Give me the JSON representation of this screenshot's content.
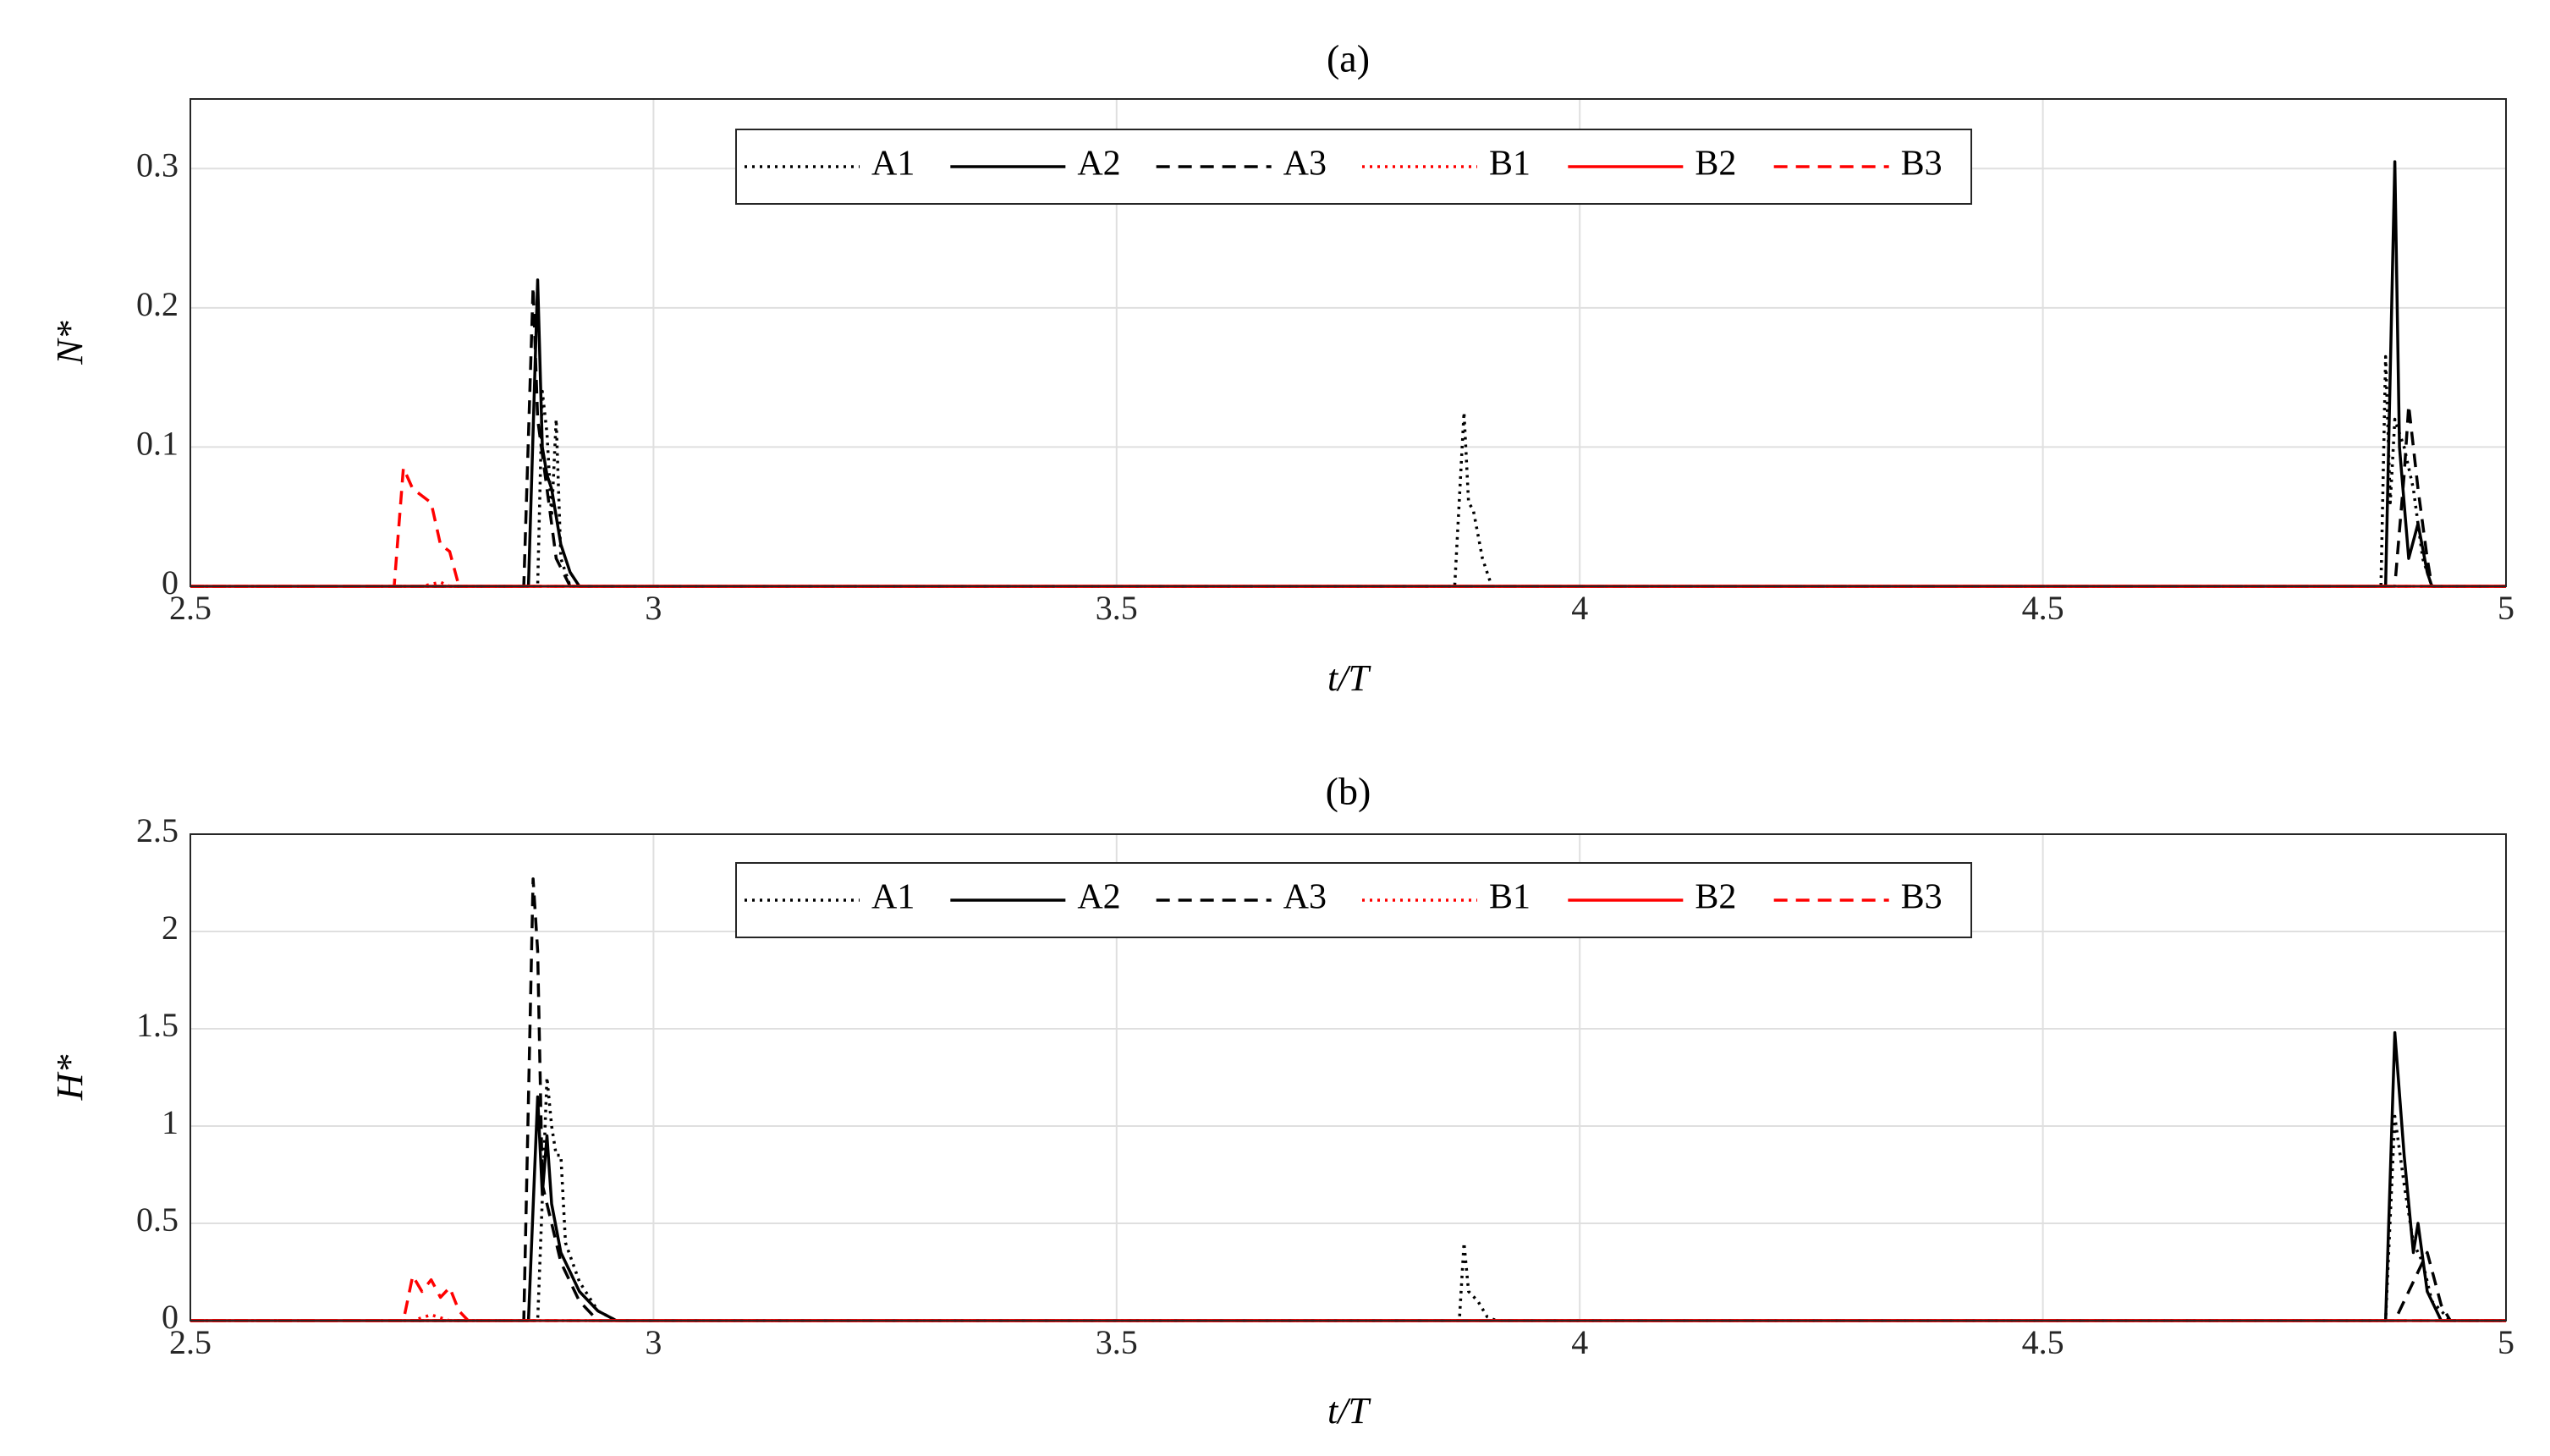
{
  "chart_data": [
    {
      "type": "line",
      "title": "(a)",
      "xlabel": "t/T",
      "ylabel": "N*",
      "xlim": [
        2.5,
        5
      ],
      "xticks": [
        2.5,
        3,
        3.5,
        4,
        4.5,
        5
      ],
      "ylim": [
        0,
        0.35
      ],
      "yticks": [
        0,
        0.1,
        0.2,
        0.3
      ],
      "grid": true,
      "legend": "top",
      "series": [
        {
          "name": "A1",
          "color": "#000000",
          "line_style": "dotted",
          "x": [
            2.5,
            2.875,
            2.88,
            2.885,
            2.89,
            2.895,
            2.9,
            2.91,
            3.865,
            3.875,
            3.88,
            3.885,
            3.895,
            3.905,
            4.865,
            4.87,
            4.875,
            4.88,
            4.89,
            4.9,
            4.91,
            4.92,
            5
          ],
          "values": [
            0,
            0,
            0.14,
            0.11,
            0.05,
            0.12,
            0.02,
            0,
            0,
            0.125,
            0.06,
            0.055,
            0.02,
            0,
            0,
            0.165,
            0.06,
            0.12,
            0.1,
            0.07,
            0.02,
            0,
            0
          ]
        },
        {
          "name": "A2",
          "color": "#000000",
          "line_style": "solid",
          "x": [
            2.5,
            2.865,
            2.875,
            2.88,
            2.885,
            2.89,
            2.9,
            2.91,
            2.92,
            4.87,
            4.88,
            4.885,
            4.895,
            4.905,
            4.915,
            4.92,
            5
          ],
          "values": [
            0,
            0,
            0.22,
            0.1,
            0.08,
            0.07,
            0.03,
            0.01,
            0,
            0,
            0.305,
            0.1,
            0.02,
            0.045,
            0.01,
            0,
            0
          ]
        },
        {
          "name": "A3",
          "color": "#000000",
          "line_style": "dashed",
          "x": [
            2.5,
            2.86,
            2.87,
            2.875,
            2.885,
            2.895,
            2.91,
            4.88,
            4.89,
            4.895,
            4.905,
            4.915,
            4.92,
            5
          ],
          "values": [
            0,
            0,
            0.215,
            0.12,
            0.07,
            0.02,
            0,
            0,
            0.08,
            0.13,
            0.07,
            0.02,
            0,
            0
          ]
        },
        {
          "name": "B1",
          "color": "#ff0000",
          "line_style": "dotted",
          "x": [
            2.5,
            2.75,
            2.77,
            2.78,
            5
          ],
          "values": [
            0,
            0,
            0.003,
            0,
            0
          ]
        },
        {
          "name": "B2",
          "color": "#ff0000",
          "line_style": "solid",
          "x": [
            2.5,
            5
          ],
          "values": [
            0,
            0
          ]
        },
        {
          "name": "B3",
          "color": "#ff0000",
          "line_style": "dashed",
          "x": [
            2.5,
            2.72,
            2.73,
            2.74,
            2.75,
            2.76,
            2.77,
            2.78,
            2.79,
            5
          ],
          "values": [
            0,
            0,
            0.085,
            0.07,
            0.065,
            0.06,
            0.03,
            0.025,
            0,
            0
          ]
        }
      ]
    },
    {
      "type": "line",
      "title": "(b)",
      "xlabel": "t/T",
      "ylabel": "H*",
      "xlim": [
        2.5,
        5
      ],
      "xticks": [
        2.5,
        3,
        3.5,
        4,
        4.5,
        5
      ],
      "ylim": [
        0,
        2.5
      ],
      "yticks": [
        0,
        0.5,
        1,
        1.5,
        2,
        2.5
      ],
      "grid": true,
      "legend": "top",
      "series": [
        {
          "name": "A1",
          "color": "#000000",
          "line_style": "dotted",
          "x": [
            2.5,
            2.875,
            2.885,
            2.89,
            2.895,
            2.9,
            2.905,
            2.92,
            2.94,
            2.96,
            3.87,
            3.875,
            3.88,
            3.89,
            3.9,
            3.91,
            4.87,
            4.88,
            4.89,
            4.9,
            4.91,
            4.92,
            4.94,
            5
          ],
          "values": [
            0,
            0,
            1.25,
            1.0,
            0.85,
            0.85,
            0.4,
            0.2,
            0.05,
            0,
            0,
            0.4,
            0.15,
            0.1,
            0.02,
            0,
            0,
            1.05,
            0.7,
            0.4,
            0.3,
            0.1,
            0,
            0
          ]
        },
        {
          "name": "A2",
          "color": "#000000",
          "line_style": "solid",
          "x": [
            2.5,
            2.865,
            2.875,
            2.88,
            2.885,
            2.89,
            2.9,
            2.91,
            2.92,
            2.94,
            2.96,
            4.87,
            4.88,
            4.89,
            4.9,
            4.905,
            4.915,
            4.93,
            5
          ],
          "values": [
            0,
            0,
            1.15,
            0.65,
            0.95,
            0.6,
            0.35,
            0.25,
            0.15,
            0.05,
            0,
            0,
            1.48,
            0.85,
            0.35,
            0.5,
            0.15,
            0,
            0
          ]
        },
        {
          "name": "A3",
          "color": "#000000",
          "line_style": "dashed",
          "x": [
            2.5,
            2.86,
            2.87,
            2.875,
            2.88,
            2.89,
            2.9,
            2.92,
            2.94,
            4.88,
            4.9,
            4.915,
            4.93,
            4.94,
            5
          ],
          "values": [
            0,
            0,
            2.27,
            1.9,
            0.7,
            0.5,
            0.3,
            0.1,
            0,
            0,
            0.2,
            0.35,
            0.08,
            0,
            0
          ]
        },
        {
          "name": "B1",
          "color": "#ff0000",
          "line_style": "dotted",
          "x": [
            2.5,
            2.74,
            2.76,
            2.78,
            5
          ],
          "values": [
            0,
            0,
            0.03,
            0,
            0
          ]
        },
        {
          "name": "B2",
          "color": "#ff0000",
          "line_style": "solid",
          "x": [
            2.5,
            5
          ],
          "values": [
            0,
            0
          ]
        },
        {
          "name": "B3",
          "color": "#ff0000",
          "line_style": "dashed",
          "x": [
            2.5,
            2.73,
            2.74,
            2.75,
            2.76,
            2.77,
            2.78,
            2.79,
            2.8,
            5
          ],
          "values": [
            0,
            0,
            0.23,
            0.15,
            0.21,
            0.12,
            0.17,
            0.05,
            0,
            0
          ]
        }
      ]
    }
  ]
}
